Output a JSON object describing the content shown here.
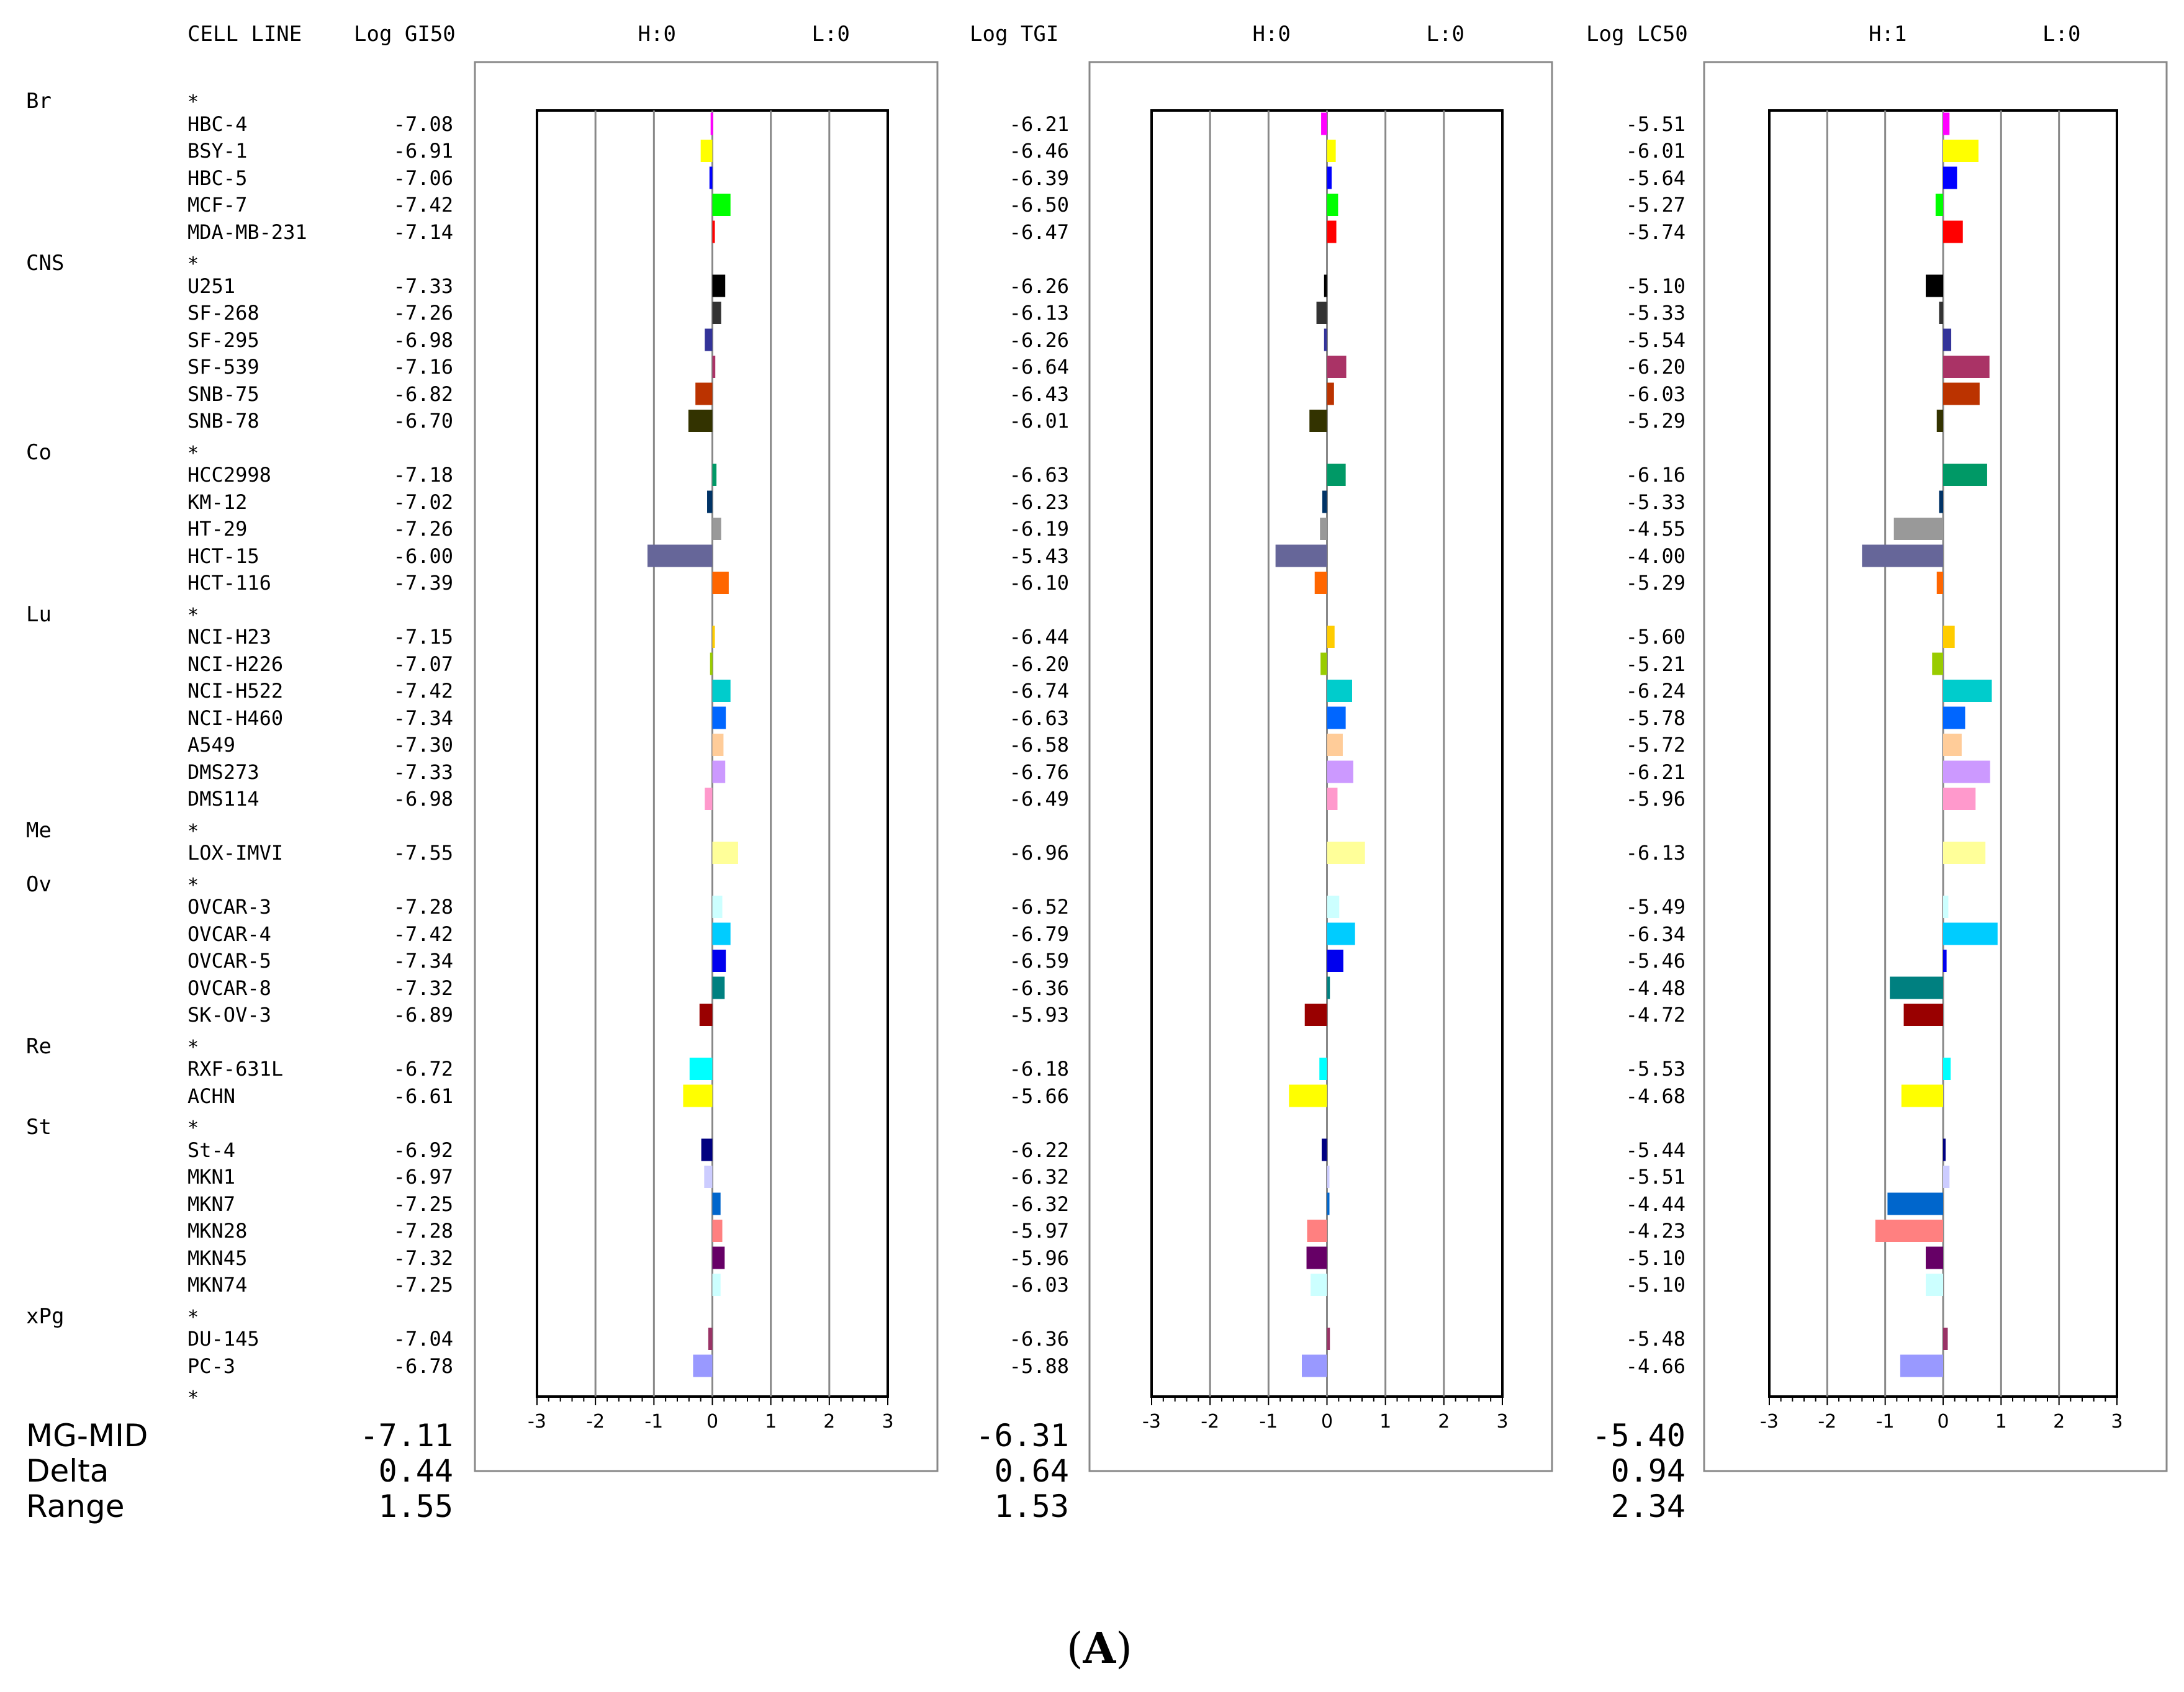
{
  "chart_data": {
    "type": "bar",
    "title": "",
    "columns": {
      "cell_line": "CELL LINE",
      "gi50": "Log GI50",
      "tgi": "Log TGI",
      "lc50": "Log LC50"
    },
    "panels": [
      {
        "key": "gi50",
        "header_h": "H:0",
        "header_l": "L:0",
        "xlim": [
          -3,
          3
        ],
        "ticks": [
          "-3",
          "-2",
          "-1",
          "0",
          "1",
          "2",
          "3"
        ]
      },
      {
        "key": "tgi",
        "header_h": "H:0",
        "header_l": "L:0",
        "xlim": [
          -3,
          3
        ],
        "ticks": [
          "-3",
          "-2",
          "-1",
          "0",
          "1",
          "2",
          "3"
        ]
      },
      {
        "key": "lc50",
        "header_h": "H:1",
        "header_l": "L:0",
        "xlim": [
          -3,
          3
        ],
        "ticks": [
          "-3",
          "-2",
          "-1",
          "0",
          "1",
          "2",
          "3"
        ]
      }
    ],
    "star": "*",
    "groups": [
      {
        "name": "Br",
        "cells": [
          {
            "name": "HBC-4",
            "color": "#ff00ff",
            "gi50": "-7.08",
            "tgi": "-6.21",
            "lc50": "-5.51"
          },
          {
            "name": "BSY-1",
            "color": "#ffff00",
            "gi50": "-6.91",
            "tgi": "-6.46",
            "lc50": "-6.01"
          },
          {
            "name": "HBC-5",
            "color": "#0000ff",
            "gi50": "-7.06",
            "tgi": "-6.39",
            "lc50": "-5.64"
          },
          {
            "name": "MCF-7",
            "color": "#00ff00",
            "gi50": "-7.42",
            "tgi": "-6.50",
            "lc50": "-5.27"
          },
          {
            "name": "MDA-MB-231",
            "color": "#ff0000",
            "gi50": "-7.14",
            "tgi": "-6.47",
            "lc50": "-5.74"
          }
        ]
      },
      {
        "name": "CNS",
        "cells": [
          {
            "name": "U251",
            "color": "#000000",
            "gi50": "-7.33",
            "tgi": "-6.26",
            "lc50": "-5.10"
          },
          {
            "name": "SF-268",
            "color": "#333333",
            "gi50": "-7.26",
            "tgi": "-6.13",
            "lc50": "-5.33"
          },
          {
            "name": "SF-295",
            "color": "#333399",
            "gi50": "-6.98",
            "tgi": "-6.26",
            "lc50": "-5.54"
          },
          {
            "name": "SF-539",
            "color": "#aa3366",
            "gi50": "-7.16",
            "tgi": "-6.64",
            "lc50": "-6.20"
          },
          {
            "name": "SNB-75",
            "color": "#bb3300",
            "gi50": "-6.82",
            "tgi": "-6.43",
            "lc50": "-6.03"
          },
          {
            "name": "SNB-78",
            "color": "#333300",
            "gi50": "-6.70",
            "tgi": "-6.01",
            "lc50": "-5.29"
          }
        ]
      },
      {
        "name": "Co",
        "cells": [
          {
            "name": "HCC2998",
            "color": "#009966",
            "gi50": "-7.18",
            "tgi": "-6.63",
            "lc50": "-6.16"
          },
          {
            "name": "KM-12",
            "color": "#003366",
            "gi50": "-7.02",
            "tgi": "-6.23",
            "lc50": "-5.33"
          },
          {
            "name": "HT-29",
            "color": "#999999",
            "gi50": "-7.26",
            "tgi": "-6.19",
            "lc50": "-4.55"
          },
          {
            "name": "HCT-15",
            "color": "#666699",
            "gi50": "-6.00",
            "tgi": "-5.43",
            "lc50": "-4.00"
          },
          {
            "name": "HCT-116",
            "color": "#ff6600",
            "gi50": "-7.39",
            "tgi": "-6.10",
            "lc50": "-5.29"
          }
        ]
      },
      {
        "name": "Lu",
        "cells": [
          {
            "name": "NCI-H23",
            "color": "#ffcc00",
            "gi50": "-7.15",
            "tgi": "-6.44",
            "lc50": "-5.60"
          },
          {
            "name": "NCI-H226",
            "color": "#99cc00",
            "gi50": "-7.07",
            "tgi": "-6.20",
            "lc50": "-5.21"
          },
          {
            "name": "NCI-H522",
            "color": "#00cccc",
            "gi50": "-7.42",
            "tgi": "-6.74",
            "lc50": "-6.24"
          },
          {
            "name": "NCI-H460",
            "color": "#0066ff",
            "gi50": "-7.34",
            "tgi": "-6.63",
            "lc50": "-5.78"
          },
          {
            "name": "A549",
            "color": "#ffcc99",
            "gi50": "-7.30",
            "tgi": "-6.58",
            "lc50": "-5.72"
          },
          {
            "name": "DMS273",
            "color": "#cc99ff",
            "gi50": "-7.33",
            "tgi": "-6.76",
            "lc50": "-6.21"
          },
          {
            "name": "DMS114",
            "color": "#ff99cc",
            "gi50": "-6.98",
            "tgi": "-6.49",
            "lc50": "-5.96"
          }
        ]
      },
      {
        "name": "Me",
        "cells": [
          {
            "name": "LOX-IMVI",
            "color": "#ffff99",
            "gi50": "-7.55",
            "tgi": "-6.96",
            "lc50": "-6.13"
          }
        ]
      },
      {
        "name": "Ov",
        "cells": [
          {
            "name": "OVCAR-3",
            "color": "#ccffff",
            "gi50": "-7.28",
            "tgi": "-6.52",
            "lc50": "-5.49"
          },
          {
            "name": "OVCAR-4",
            "color": "#00ccff",
            "gi50": "-7.42",
            "tgi": "-6.79",
            "lc50": "-6.34"
          },
          {
            "name": "OVCAR-5",
            "color": "#0000ee",
            "gi50": "-7.34",
            "tgi": "-6.59",
            "lc50": "-5.46"
          },
          {
            "name": "OVCAR-8",
            "color": "#008080",
            "gi50": "-7.32",
            "tgi": "-6.36",
            "lc50": "-4.48"
          },
          {
            "name": "SK-OV-3",
            "color": "#990000",
            "gi50": "-6.89",
            "tgi": "-5.93",
            "lc50": "-4.72"
          }
        ]
      },
      {
        "name": "Re",
        "cells": [
          {
            "name": "RXF-631L",
            "color": "#00ffff",
            "gi50": "-6.72",
            "tgi": "-6.18",
            "lc50": "-5.53"
          },
          {
            "name": "ACHN",
            "color": "#ffff00",
            "gi50": "-6.61",
            "tgi": "-5.66",
            "lc50": "-4.68"
          }
        ]
      },
      {
        "name": "St",
        "cells": [
          {
            "name": "St-4",
            "color": "#000080",
            "gi50": "-6.92",
            "tgi": "-6.22",
            "lc50": "-5.44"
          },
          {
            "name": "MKN1",
            "color": "#ccccff",
            "gi50": "-6.97",
            "tgi": "-6.32",
            "lc50": "-5.51"
          },
          {
            "name": "MKN7",
            "color": "#0066cc",
            "gi50": "-7.25",
            "tgi": "-6.32",
            "lc50": "-4.44"
          },
          {
            "name": "MKN28",
            "color": "#ff8080",
            "gi50": "-7.28",
            "tgi": "-5.97",
            "lc50": "-4.23"
          },
          {
            "name": "MKN45",
            "color": "#660066",
            "gi50": "-7.32",
            "tgi": "-5.96",
            "lc50": "-5.10"
          },
          {
            "name": "MKN74",
            "color": "#ccffff",
            "gi50": "-7.25",
            "tgi": "-6.03",
            "lc50": "-5.10"
          }
        ]
      },
      {
        "name": "xPg",
        "cells": [
          {
            "name": "DU-145",
            "color": "#993366",
            "gi50": "-7.04",
            "tgi": "-6.36",
            "lc50": "-5.48"
          },
          {
            "name": "PC-3",
            "color": "#9999ff",
            "gi50": "-6.78",
            "tgi": "-5.88",
            "lc50": "-4.66"
          }
        ]
      }
    ],
    "summary": {
      "labels": {
        "mgmid": "MG-MID",
        "delta": "Delta",
        "range": "Range"
      },
      "gi50": {
        "mgmid": "-7.11",
        "delta": "0.44",
        "range": "1.55"
      },
      "tgi": {
        "mgmid": "-6.31",
        "delta": "0.64",
        "range": "1.53"
      },
      "lc50": {
        "mgmid": "-5.40",
        "delta": "0.94",
        "range": "2.34"
      }
    },
    "caption_open": "(",
    "caption_letter": "A",
    "caption_close": ")"
  }
}
